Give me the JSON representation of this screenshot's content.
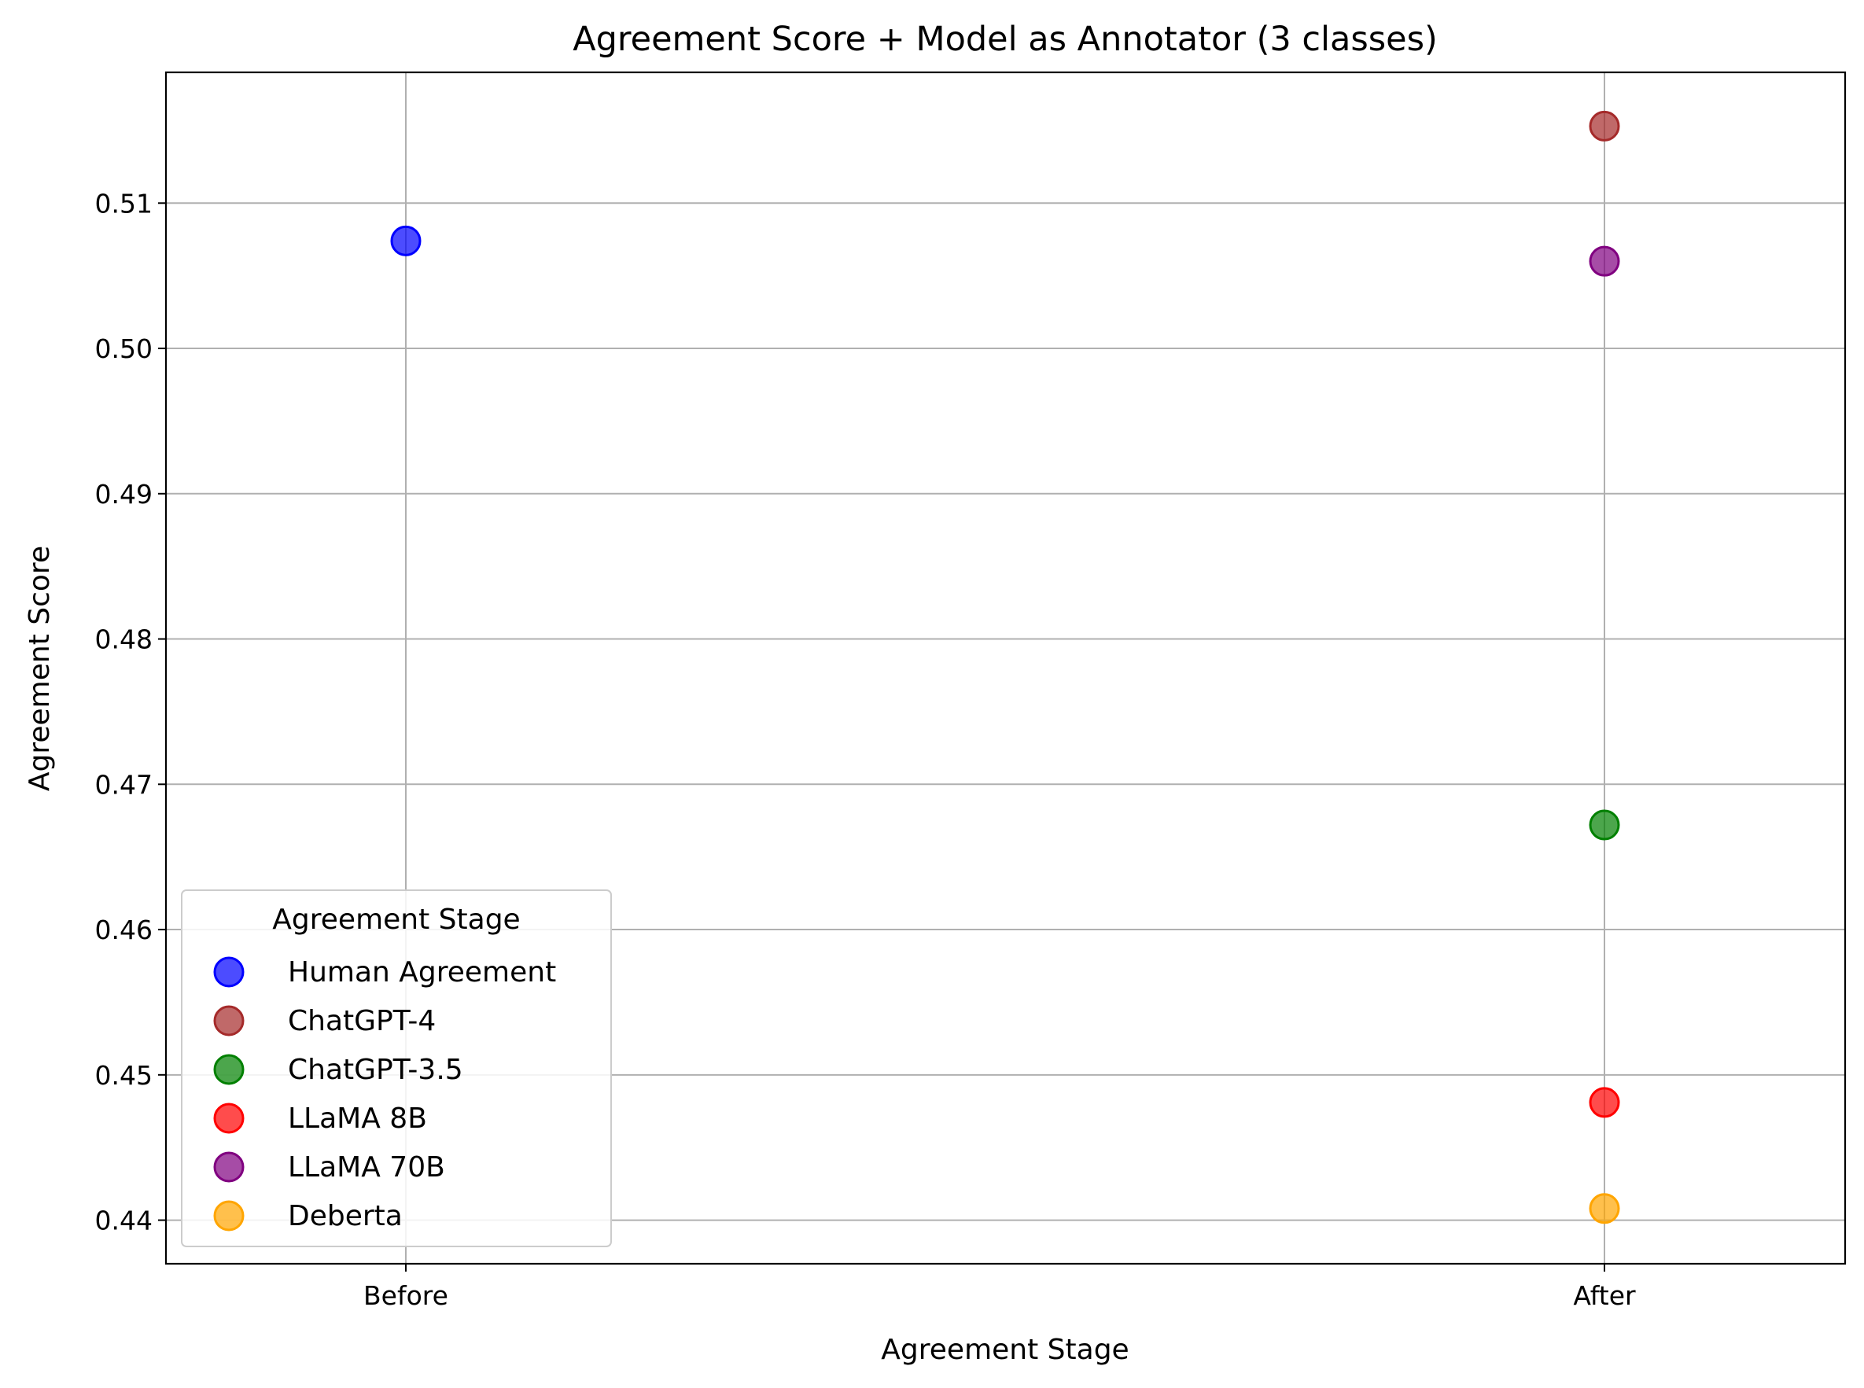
{
  "chart_data": {
    "type": "scatter",
    "title": "Agreement Score + Model as Annotator (3 classes)",
    "xlabel": "Agreement Stage",
    "ylabel": "Agreement Score",
    "categories": [
      "Before",
      "After"
    ],
    "ylim": [
      0.437,
      0.519
    ],
    "yticks": [
      "0.44",
      "0.45",
      "0.46",
      "0.47",
      "0.48",
      "0.49",
      "0.50",
      "0.51"
    ],
    "grid": true,
    "legend": {
      "title": "Agreement Stage",
      "placement": "lower-left"
    },
    "series": [
      {
        "name": "Human Agreement",
        "color": "#0000ff",
        "points": [
          {
            "x": "Before",
            "y": 0.5074
          }
        ]
      },
      {
        "name": "ChatGPT-4",
        "color": "#a52a2a",
        "points": [
          {
            "x": "After",
            "y": 0.5153
          }
        ]
      },
      {
        "name": "ChatGPT-3.5",
        "color": "#008000",
        "points": [
          {
            "x": "After",
            "y": 0.4672
          }
        ]
      },
      {
        "name": "LLaMA 8B",
        "color": "#ff0000",
        "points": [
          {
            "x": "After",
            "y": 0.4481
          }
        ]
      },
      {
        "name": "LLaMA 70B",
        "color": "#800080",
        "points": [
          {
            "x": "After",
            "y": 0.506
          }
        ]
      },
      {
        "name": "Deberta",
        "color": "#ffa500",
        "points": [
          {
            "x": "After",
            "y": 0.4408
          }
        ]
      }
    ]
  }
}
